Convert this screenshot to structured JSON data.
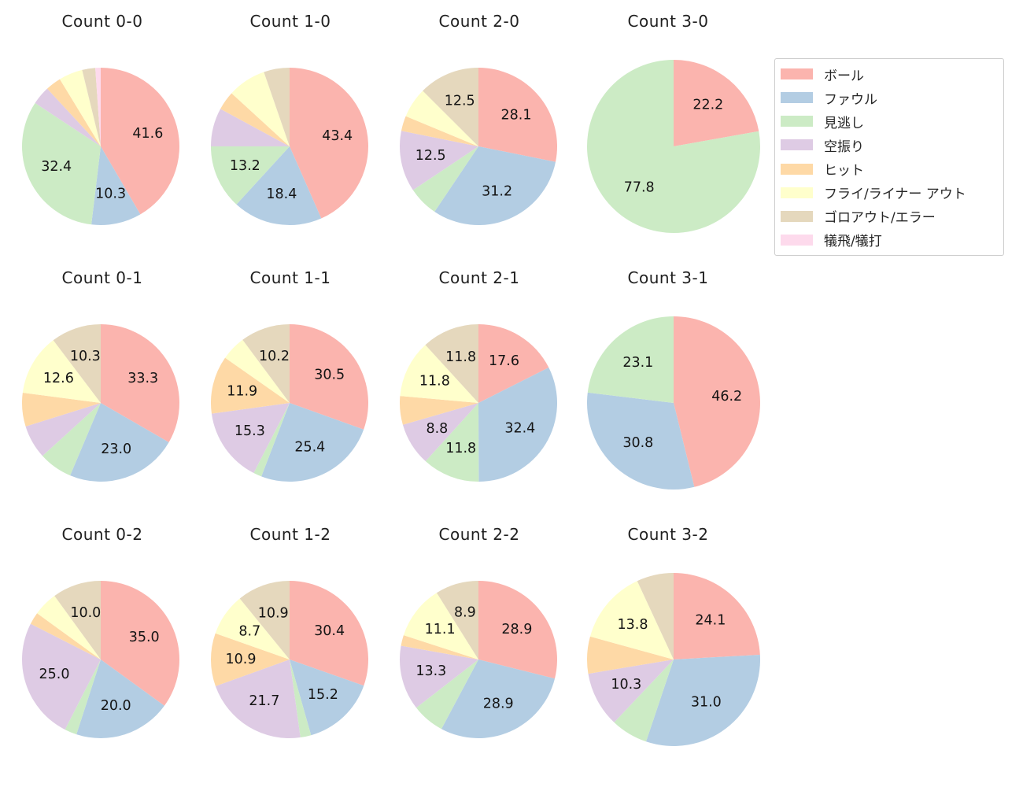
{
  "figure": {
    "background": "#ffffff"
  },
  "legend": {
    "items": [
      {
        "key": "ball",
        "label": "ボール",
        "color": "#fbb4ae"
      },
      {
        "key": "foul",
        "label": "ファウル",
        "color": "#b3cde3"
      },
      {
        "key": "called-strike",
        "label": "見逃し",
        "color": "#ccebc5"
      },
      {
        "key": "swinging-strike",
        "label": "空振り",
        "color": "#decbe4"
      },
      {
        "key": "hit",
        "label": "ヒット",
        "color": "#fed9a6"
      },
      {
        "key": "fly-liner-out",
        "label": "フライ/ライナー アウト",
        "color": "#ffffcc"
      },
      {
        "key": "groundout-error",
        "label": "ゴロアウト/エラー",
        "color": "#e5d8bd"
      },
      {
        "key": "sacrifice",
        "label": "犠飛/犠打",
        "color": "#fddaec"
      }
    ]
  },
  "chart_data": {
    "type": "pie",
    "grid": {
      "columns": 4,
      "rows": 3
    },
    "start_angle": "top",
    "direction": "clockwise",
    "units": "percent",
    "label_min_pct": 8,
    "legend_position": "upper right",
    "categories": [
      "ボール",
      "ファウル",
      "見逃し",
      "空振り",
      "ヒット",
      "フライ/ライナー アウト",
      "ゴロアウト/エラー",
      "犠飛/犠打"
    ],
    "category_keys": [
      "ball",
      "foul",
      "called-strike",
      "swinging-strike",
      "hit",
      "fly-liner-out",
      "groundout-error",
      "sacrifice"
    ],
    "colors": [
      "#fbb4ae",
      "#b3cde3",
      "#ccebc5",
      "#decbe4",
      "#fed9a6",
      "#ffffcc",
      "#e5d8bd",
      "#fddaec"
    ],
    "pies": [
      {
        "title": "Count 0-0",
        "values": [
          41.6,
          10.3,
          32.4,
          3.8,
          3.2,
          4.9,
          2.7,
          1.1
        ],
        "shown_labels": [
          "41.6",
          "10.3",
          "32.4",
          "",
          "",
          "",
          "",
          ""
        ]
      },
      {
        "title": "Count 1-0",
        "values": [
          43.4,
          18.4,
          13.2,
          7.9,
          3.9,
          7.9,
          5.3,
          0
        ],
        "shown_labels": [
          "43.4",
          "18.4",
          "13.2",
          "",
          "",
          "",
          "",
          ""
        ]
      },
      {
        "title": "Count 2-0",
        "values": [
          28.1,
          31.2,
          6.2,
          12.5,
          3.1,
          6.2,
          12.5,
          0
        ],
        "shown_labels": [
          "28.1",
          "31.2",
          "",
          "12.5",
          "",
          "",
          "12.5",
          ""
        ]
      },
      {
        "title": "Count 3-0",
        "values": [
          22.2,
          0,
          77.8,
          0,
          0,
          0,
          0,
          0
        ],
        "shown_labels": [
          "22.2",
          "",
          "77.8",
          "",
          "",
          "",
          "",
          ""
        ]
      },
      {
        "title": "Count 0-1",
        "values": [
          33.3,
          23.0,
          6.9,
          6.9,
          6.9,
          12.6,
          10.3,
          0
        ],
        "shown_labels": [
          "33.3",
          "23.0",
          "",
          "",
          "",
          "12.6",
          "10.3",
          ""
        ]
      },
      {
        "title": "Count 1-1",
        "values": [
          30.5,
          25.4,
          1.7,
          15.3,
          11.9,
          5.1,
          10.2,
          0
        ],
        "shown_labels": [
          "30.5",
          "25.4",
          "",
          "15.3",
          "11.9",
          "",
          "10.2",
          ""
        ]
      },
      {
        "title": "Count 2-1",
        "values": [
          17.6,
          32.4,
          11.8,
          8.8,
          5.9,
          11.8,
          11.8,
          0
        ],
        "shown_labels": [
          "17.6",
          "32.4",
          "11.8",
          "8.8",
          "",
          "11.8",
          "11.8",
          ""
        ]
      },
      {
        "title": "Count 3-1",
        "values": [
          46.2,
          30.8,
          23.1,
          0,
          0,
          0,
          0,
          0
        ],
        "shown_labels": [
          "46.2",
          "30.8",
          "23.1",
          "",
          "",
          "",
          "",
          ""
        ]
      },
      {
        "title": "Count 0-2",
        "values": [
          35.0,
          20.0,
          2.5,
          25.0,
          2.5,
          5.0,
          10.0,
          0
        ],
        "shown_labels": [
          "35.0",
          "20.0",
          "",
          "25.0",
          "",
          "",
          "10.0",
          ""
        ]
      },
      {
        "title": "Count 1-2",
        "values": [
          30.4,
          15.2,
          2.2,
          21.7,
          10.9,
          8.7,
          10.9,
          0
        ],
        "shown_labels": [
          "30.4",
          "15.2",
          "",
          "21.7",
          "10.9",
          "8.7",
          "10.9",
          ""
        ]
      },
      {
        "title": "Count 2-2",
        "values": [
          28.9,
          28.9,
          6.7,
          13.3,
          2.2,
          11.1,
          8.9,
          0
        ],
        "shown_labels": [
          "28.9",
          "28.9",
          "",
          "13.3",
          "",
          "11.1",
          "8.9",
          ""
        ]
      },
      {
        "title": "Count 3-2",
        "values": [
          24.1,
          31.0,
          6.9,
          10.3,
          6.9,
          13.8,
          6.9,
          0
        ],
        "shown_labels": [
          "24.1",
          "31.0",
          "",
          "10.3",
          "",
          "13.8",
          "",
          ""
        ]
      }
    ]
  }
}
